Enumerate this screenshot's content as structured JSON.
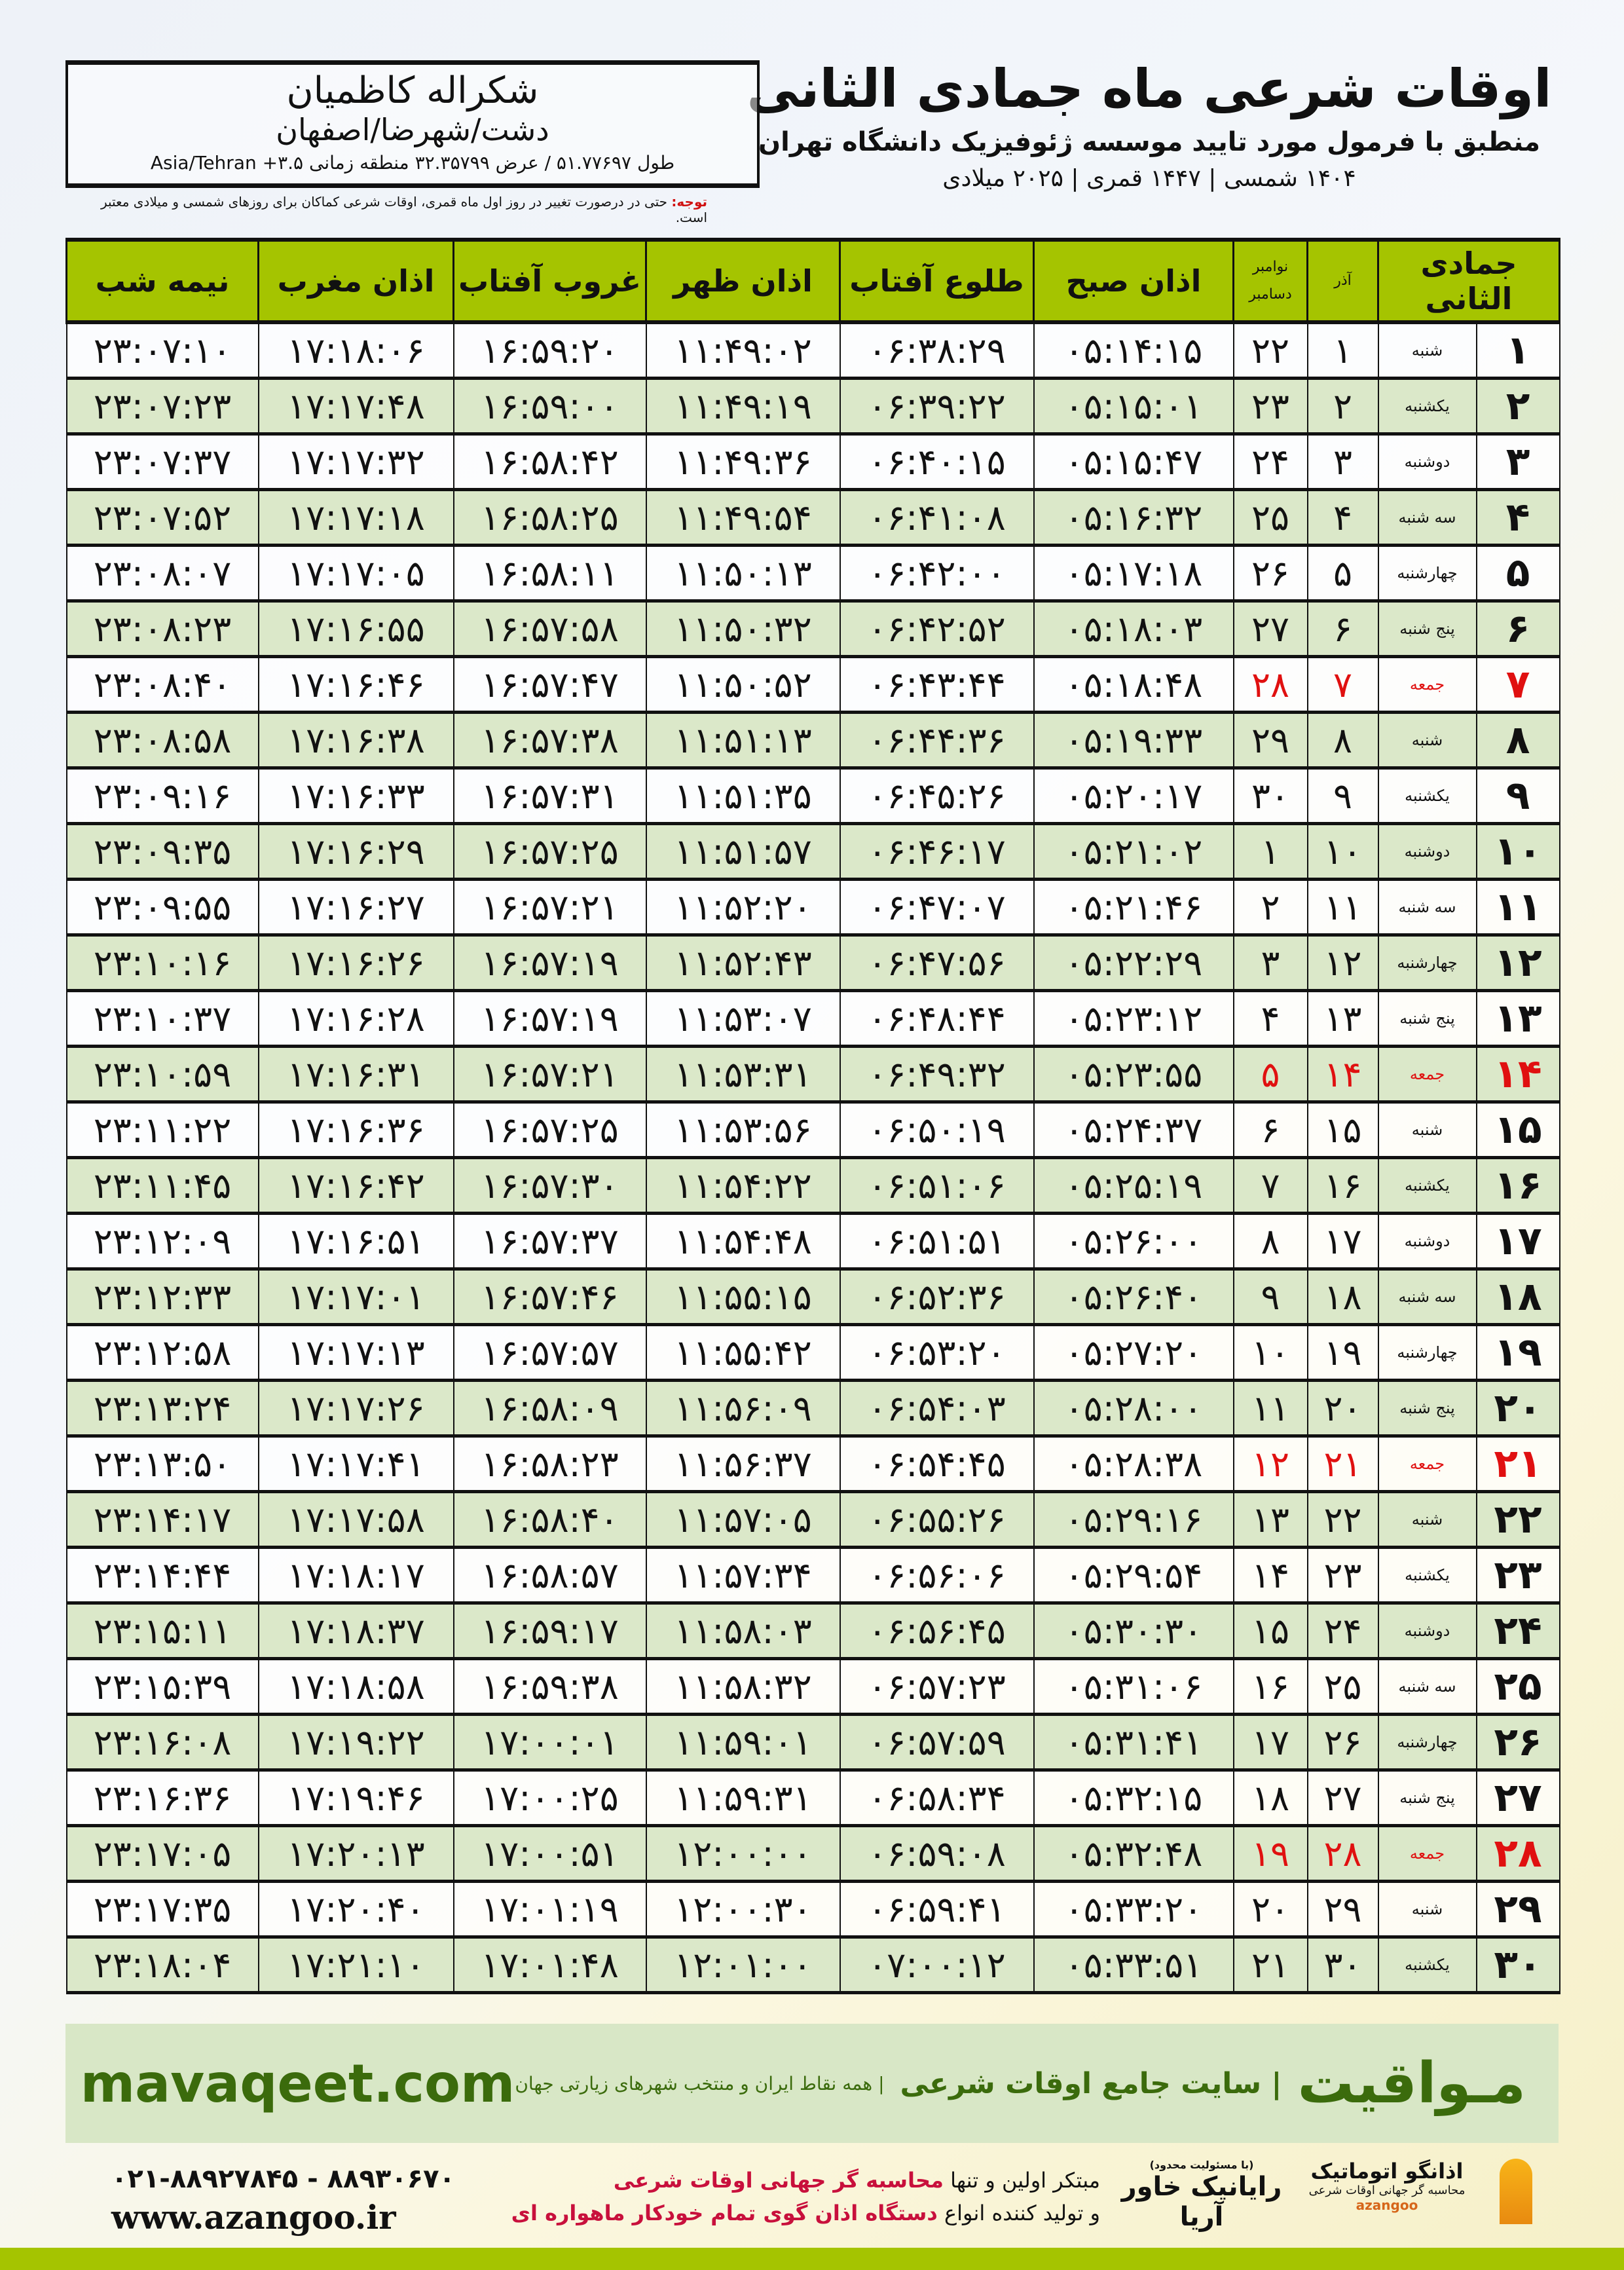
{
  "header": {
    "title": "اوقات شرعی ماه جمادی الثانی",
    "subtitle": "منطبق با فرمول مورد تایید موسسه ژئوفیزیک دانشگاه تهران",
    "dates": "۱۴۰۴ شمسی | ۱۴۴۷ قمری | ۲۰۲۵ میلادی"
  },
  "location": {
    "name": "شکراله کاظمیان",
    "region": "دشت/شهرضا/اصفهان",
    "coords": "طول ۵۱.۷۷۶۹۷ / عرض ۳۲.۳۵۷۹۹ منطقه زمانی ۳.۵+ Asia/Tehran"
  },
  "note": {
    "label": "توجه:",
    "text": " حتی در درصورت تغییر در روز اول ماه قمری، اوقات شرعی کماکان برای روزهای شمسی و میلادی معتبر است."
  },
  "table": {
    "headers": {
      "day": "جمادی الثانی",
      "azar": "آذر",
      "greg_top": "نوامبر",
      "greg_bottom": "دسامبر",
      "sobh": "اذان صبح",
      "tolu": "طلوع آفتاب",
      "zohr": "اذان ظهر",
      "ghurub": "غروب آفتاب",
      "maghreb": "اذان مغرب",
      "nime": "نیمه شب"
    },
    "holiday_color": "#e01010",
    "header_color": "#a5c400",
    "rows": [
      [
        "۱",
        "شنبه",
        "۱",
        "۲۲",
        "۰۵:۱۴:۱۵",
        "۰۶:۳۸:۲۹",
        "۱۱:۴۹:۰۲",
        "۱۶:۵۹:۲۰",
        "۱۷:۱۸:۰۶",
        "۲۳:۰۷:۱۰"
      ],
      [
        "۲",
        "یکشنبه",
        "۲",
        "۲۳",
        "۰۵:۱۵:۰۱",
        "۰۶:۳۹:۲۲",
        "۱۱:۴۹:۱۹",
        "۱۶:۵۹:۰۰",
        "۱۷:۱۷:۴۸",
        "۲۳:۰۷:۲۳"
      ],
      [
        "۳",
        "دوشنبه",
        "۳",
        "۲۴",
        "۰۵:۱۵:۴۷",
        "۰۶:۴۰:۱۵",
        "۱۱:۴۹:۳۶",
        "۱۶:۵۸:۴۲",
        "۱۷:۱۷:۳۲",
        "۲۳:۰۷:۳۷"
      ],
      [
        "۴",
        "سه شنبه",
        "۴",
        "۲۵",
        "۰۵:۱۶:۳۲",
        "۰۶:۴۱:۰۸",
        "۱۱:۴۹:۵۴",
        "۱۶:۵۸:۲۵",
        "۱۷:۱۷:۱۸",
        "۲۳:۰۷:۵۲"
      ],
      [
        "۵",
        "چهارشنبه",
        "۵",
        "۲۶",
        "۰۵:۱۷:۱۸",
        "۰۶:۴۲:۰۰",
        "۱۱:۵۰:۱۳",
        "۱۶:۵۸:۱۱",
        "۱۷:۱۷:۰۵",
        "۲۳:۰۸:۰۷"
      ],
      [
        "۶",
        "پنج شنبه",
        "۶",
        "۲۷",
        "۰۵:۱۸:۰۳",
        "۰۶:۴۲:۵۲",
        "۱۱:۵۰:۳۲",
        "۱۶:۵۷:۵۸",
        "۱۷:۱۶:۵۵",
        "۲۳:۰۸:۲۳"
      ],
      [
        "۷",
        "جمعه",
        "۷",
        "۲۸",
        "۰۵:۱۸:۴۸",
        "۰۶:۴۳:۴۴",
        "۱۱:۵۰:۵۲",
        "۱۶:۵۷:۴۷",
        "۱۷:۱۶:۴۶",
        "۲۳:۰۸:۴۰"
      ],
      [
        "۸",
        "شنبه",
        "۸",
        "۲۹",
        "۰۵:۱۹:۳۳",
        "۰۶:۴۴:۳۶",
        "۱۱:۵۱:۱۳",
        "۱۶:۵۷:۳۸",
        "۱۷:۱۶:۳۸",
        "۲۳:۰۸:۵۸"
      ],
      [
        "۹",
        "یکشنبه",
        "۹",
        "۳۰",
        "۰۵:۲۰:۱۷",
        "۰۶:۴۵:۲۶",
        "۱۱:۵۱:۳۵",
        "۱۶:۵۷:۳۱",
        "۱۷:۱۶:۳۳",
        "۲۳:۰۹:۱۶"
      ],
      [
        "۱۰",
        "دوشنبه",
        "۱۰",
        "۱",
        "۰۵:۲۱:۰۲",
        "۰۶:۴۶:۱۷",
        "۱۱:۵۱:۵۷",
        "۱۶:۵۷:۲۵",
        "۱۷:۱۶:۲۹",
        "۲۳:۰۹:۳۵"
      ],
      [
        "۱۱",
        "سه شنبه",
        "۱۱",
        "۲",
        "۰۵:۲۱:۴۶",
        "۰۶:۴۷:۰۷",
        "۱۱:۵۲:۲۰",
        "۱۶:۵۷:۲۱",
        "۱۷:۱۶:۲۷",
        "۲۳:۰۹:۵۵"
      ],
      [
        "۱۲",
        "چهارشنبه",
        "۱۲",
        "۳",
        "۰۵:۲۲:۲۹",
        "۰۶:۴۷:۵۶",
        "۱۱:۵۲:۴۳",
        "۱۶:۵۷:۱۹",
        "۱۷:۱۶:۲۶",
        "۲۳:۱۰:۱۶"
      ],
      [
        "۱۳",
        "پنج شنبه",
        "۱۳",
        "۴",
        "۰۵:۲۳:۱۲",
        "۰۶:۴۸:۴۴",
        "۱۱:۵۳:۰۷",
        "۱۶:۵۷:۱۹",
        "۱۷:۱۶:۲۸",
        "۲۳:۱۰:۳۷"
      ],
      [
        "۱۴",
        "جمعه",
        "۱۴",
        "۵",
        "۰۵:۲۳:۵۵",
        "۰۶:۴۹:۳۲",
        "۱۱:۵۳:۳۱",
        "۱۶:۵۷:۲۱",
        "۱۷:۱۶:۳۱",
        "۲۳:۱۰:۵۹"
      ],
      [
        "۱۵",
        "شنبه",
        "۱۵",
        "۶",
        "۰۵:۲۴:۳۷",
        "۰۶:۵۰:۱۹",
        "۱۱:۵۳:۵۶",
        "۱۶:۵۷:۲۵",
        "۱۷:۱۶:۳۶",
        "۲۳:۱۱:۲۲"
      ],
      [
        "۱۶",
        "یکشنبه",
        "۱۶",
        "۷",
        "۰۵:۲۵:۱۹",
        "۰۶:۵۱:۰۶",
        "۱۱:۵۴:۲۲",
        "۱۶:۵۷:۳۰",
        "۱۷:۱۶:۴۲",
        "۲۳:۱۱:۴۵"
      ],
      [
        "۱۷",
        "دوشنبه",
        "۱۷",
        "۸",
        "۰۵:۲۶:۰۰",
        "۰۶:۵۱:۵۱",
        "۱۱:۵۴:۴۸",
        "۱۶:۵۷:۳۷",
        "۱۷:۱۶:۵۱",
        "۲۳:۱۲:۰۹"
      ],
      [
        "۱۸",
        "سه شنبه",
        "۱۸",
        "۹",
        "۰۵:۲۶:۴۰",
        "۰۶:۵۲:۳۶",
        "۱۱:۵۵:۱۵",
        "۱۶:۵۷:۴۶",
        "۱۷:۱۷:۰۱",
        "۲۳:۱۲:۳۳"
      ],
      [
        "۱۹",
        "چهارشنبه",
        "۱۹",
        "۱۰",
        "۰۵:۲۷:۲۰",
        "۰۶:۵۳:۲۰",
        "۱۱:۵۵:۴۲",
        "۱۶:۵۷:۵۷",
        "۱۷:۱۷:۱۳",
        "۲۳:۱۲:۵۸"
      ],
      [
        "۲۰",
        "پنج شنبه",
        "۲۰",
        "۱۱",
        "۰۵:۲۸:۰۰",
        "۰۶:۵۴:۰۳",
        "۱۱:۵۶:۰۹",
        "۱۶:۵۸:۰۹",
        "۱۷:۱۷:۲۶",
        "۲۳:۱۳:۲۴"
      ],
      [
        "۲۱",
        "جمعه",
        "۲۱",
        "۱۲",
        "۰۵:۲۸:۳۸",
        "۰۶:۵۴:۴۵",
        "۱۱:۵۶:۳۷",
        "۱۶:۵۸:۲۳",
        "۱۷:۱۷:۴۱",
        "۲۳:۱۳:۵۰"
      ],
      [
        "۲۲",
        "شنبه",
        "۲۲",
        "۱۳",
        "۰۵:۲۹:۱۶",
        "۰۶:۵۵:۲۶",
        "۱۱:۵۷:۰۵",
        "۱۶:۵۸:۴۰",
        "۱۷:۱۷:۵۸",
        "۲۳:۱۴:۱۷"
      ],
      [
        "۲۳",
        "یکشنبه",
        "۲۳",
        "۱۴",
        "۰۵:۲۹:۵۴",
        "۰۶:۵۶:۰۶",
        "۱۱:۵۷:۳۴",
        "۱۶:۵۸:۵۷",
        "۱۷:۱۸:۱۷",
        "۲۳:۱۴:۴۴"
      ],
      [
        "۲۴",
        "دوشنبه",
        "۲۴",
        "۱۵",
        "۰۵:۳۰:۳۰",
        "۰۶:۵۶:۴۵",
        "۱۱:۵۸:۰۳",
        "۱۶:۵۹:۱۷",
        "۱۷:۱۸:۳۷",
        "۲۳:۱۵:۱۱"
      ],
      [
        "۲۵",
        "سه شنبه",
        "۲۵",
        "۱۶",
        "۰۵:۳۱:۰۶",
        "۰۶:۵۷:۲۳",
        "۱۱:۵۸:۳۲",
        "۱۶:۵۹:۳۸",
        "۱۷:۱۸:۵۸",
        "۲۳:۱۵:۳۹"
      ],
      [
        "۲۶",
        "چهارشنبه",
        "۲۶",
        "۱۷",
        "۰۵:۳۱:۴۱",
        "۰۶:۵۷:۵۹",
        "۱۱:۵۹:۰۱",
        "۱۷:۰۰:۰۱",
        "۱۷:۱۹:۲۲",
        "۲۳:۱۶:۰۸"
      ],
      [
        "۲۷",
        "پنج شنبه",
        "۲۷",
        "۱۸",
        "۰۵:۳۲:۱۵",
        "۰۶:۵۸:۳۴",
        "۱۱:۵۹:۳۱",
        "۱۷:۰۰:۲۵",
        "۱۷:۱۹:۴۶",
        "۲۳:۱۶:۳۶"
      ],
      [
        "۲۸",
        "جمعه",
        "۲۸",
        "۱۹",
        "۰۵:۳۲:۴۸",
        "۰۶:۵۹:۰۸",
        "۱۲:۰۰:۰۰",
        "۱۷:۰۰:۵۱",
        "۱۷:۲۰:۱۳",
        "۲۳:۱۷:۰۵"
      ],
      [
        "۲۹",
        "شنبه",
        "۲۹",
        "۲۰",
        "۰۵:۳۳:۲۰",
        "۰۶:۵۹:۴۱",
        "۱۲:۰۰:۳۰",
        "۱۷:۰۱:۱۹",
        "۱۷:۲۰:۴۰",
        "۲۳:۱۷:۳۵"
      ],
      [
        "۳۰",
        "یکشنبه",
        "۳۰",
        "۲۱",
        "۰۵:۳۳:۵۱",
        "۰۷:۰۰:۱۲",
        "۱۲:۰۱:۰۰",
        "۱۷:۰۱:۴۸",
        "۱۷:۲۱:۱۰",
        "۲۳:۱۸:۰۴"
      ]
    ],
    "holiday_rows": [
      7,
      14,
      21,
      28
    ]
  },
  "banner": {
    "brand": "مـواقیت",
    "tagline": "| سایت جامع اوقات شرعی",
    "tagline2": "| همه نقاط ایران و منتخب شهرهای زیارتی جهان",
    "site": "mavaqeet.com"
  },
  "footer": {
    "phones": "۰۲۱-۸۸۹۲۷۸۴۵ - ۸۸۹۳۰۶۷۰",
    "www": "www.azangoo.ir",
    "slogan1_a": "مبتکر اولین و تنها ",
    "slogan1_b": "محاسبه گر جهانی اوقات شرعی",
    "slogan2_a": "و تولید کننده انواع ",
    "slogan2_b": "دستگاه اذان گوی تمام خودکار ماهواره ای",
    "logo1_small": "(با مسئولیت محدود)",
    "logo1": "رایانیک خاور آریا",
    "logo2": "اذانگو اتوماتیک",
    "logo2_en": "azangoo",
    "logo2_small": "محاسبه گر جهانی اوقات شرعی"
  }
}
